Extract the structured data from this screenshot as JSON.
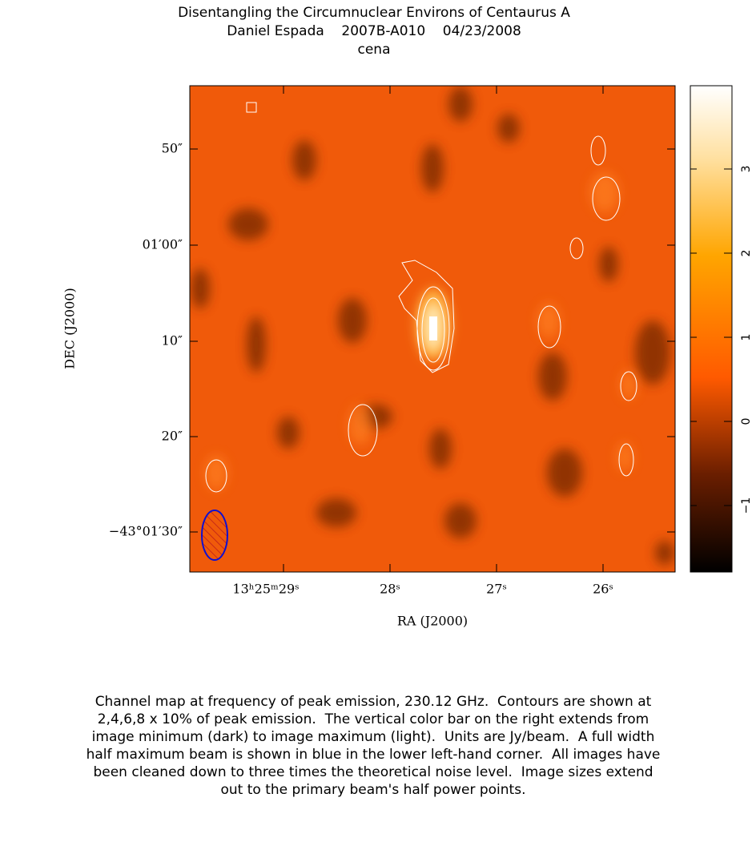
{
  "header": {
    "lines": [
      "Disentangling the Circumnuclear Environs of Centaurus A",
      "Daniel Espada    2007B-A010    04/23/2008",
      "cena"
    ]
  },
  "figure": {
    "xlabel": "RA (J2000)",
    "ylabel": "DEC (J2000)",
    "xticks": [
      "13ʰ25ᵐ29ˢ",
      "28ˢ",
      "27ˢ",
      "26ˢ"
    ],
    "yticks": [
      "50″",
      "01′00″",
      "10″",
      "20″",
      "−43°01′30″"
    ],
    "colorbar": {
      "lim": [
        -1.79,
        3.99
      ],
      "ticks": [
        {
          "value": -1,
          "label": "−1"
        },
        0,
        1,
        2,
        3
      ]
    }
  },
  "caption": {
    "lines": [
      "Channel map at frequency of peak emission, 230.12 GHz.  Contours are shown at",
      "2,4,6,8 x 10% of peak emission.  The vertical color bar on the right extends from",
      "image minimum (dark) to image maximum (light).  Units are Jy/beam.  A full width",
      "half maximum beam is shown in blue in the lower left-hand corner.  All images have",
      "been cleaned down to three times the theoretical noise level.  Image sizes extend",
      "out to the primary beam's half power points."
    ]
  }
}
